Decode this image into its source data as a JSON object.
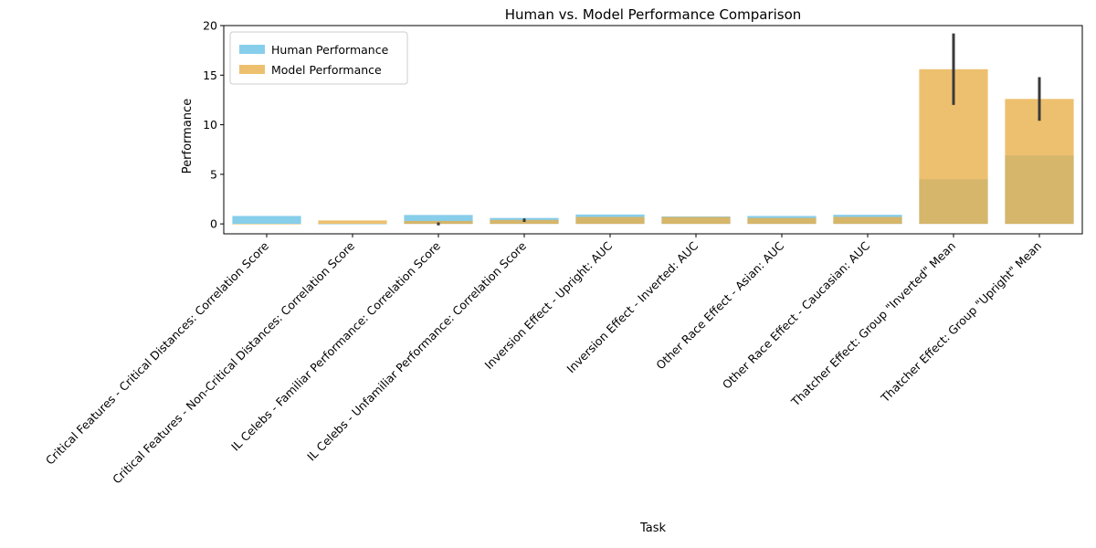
{
  "chart_data": {
    "type": "bar",
    "title": "Human vs. Model Performance Comparison",
    "xlabel": "Task",
    "ylabel": "Performance",
    "ylim": [
      -1,
      20
    ],
    "yticks": [
      0,
      5,
      10,
      15,
      20
    ],
    "grid": false,
    "legend_position": "top-left",
    "categories": [
      "Critical Features - Critical Distances: Correlation Score",
      "Critical Features - Non-Critical Distances: Correlation Score",
      "IL Celebs - Familiar Performance: Correlation Score",
      "IL Celebs - Unfamiliar Performance: Correlation Score",
      "Inversion Effect - Upright: AUC",
      "Inversion Effect - Inverted: AUC",
      "Other Race Effect - Asian: AUC",
      "Other Race Effect - Caucasian: AUC",
      "Thatcher Effect: Group \"Inverted\" Mean",
      "Thatcher Effect: Group \"Upright\" Mean"
    ],
    "series": [
      {
        "name": "Human Performance",
        "color": "#87CEEB",
        "values": [
          0.8,
          0.0,
          0.9,
          0.6,
          0.95,
          0.75,
          0.8,
          0.92,
          4.5,
          6.9
        ]
      },
      {
        "name": "Model Performance",
        "color": "#E8B04B",
        "values": [
          -0.05,
          0.35,
          0.3,
          0.4,
          0.7,
          0.7,
          0.6,
          0.7,
          15.6,
          12.6
        ],
        "error_low": [
          null,
          null,
          -0.15,
          0.2,
          null,
          null,
          null,
          null,
          12.0,
          10.4
        ],
        "error_high": [
          null,
          null,
          0.15,
          0.55,
          null,
          null,
          null,
          null,
          19.2,
          14.8
        ]
      }
    ]
  }
}
